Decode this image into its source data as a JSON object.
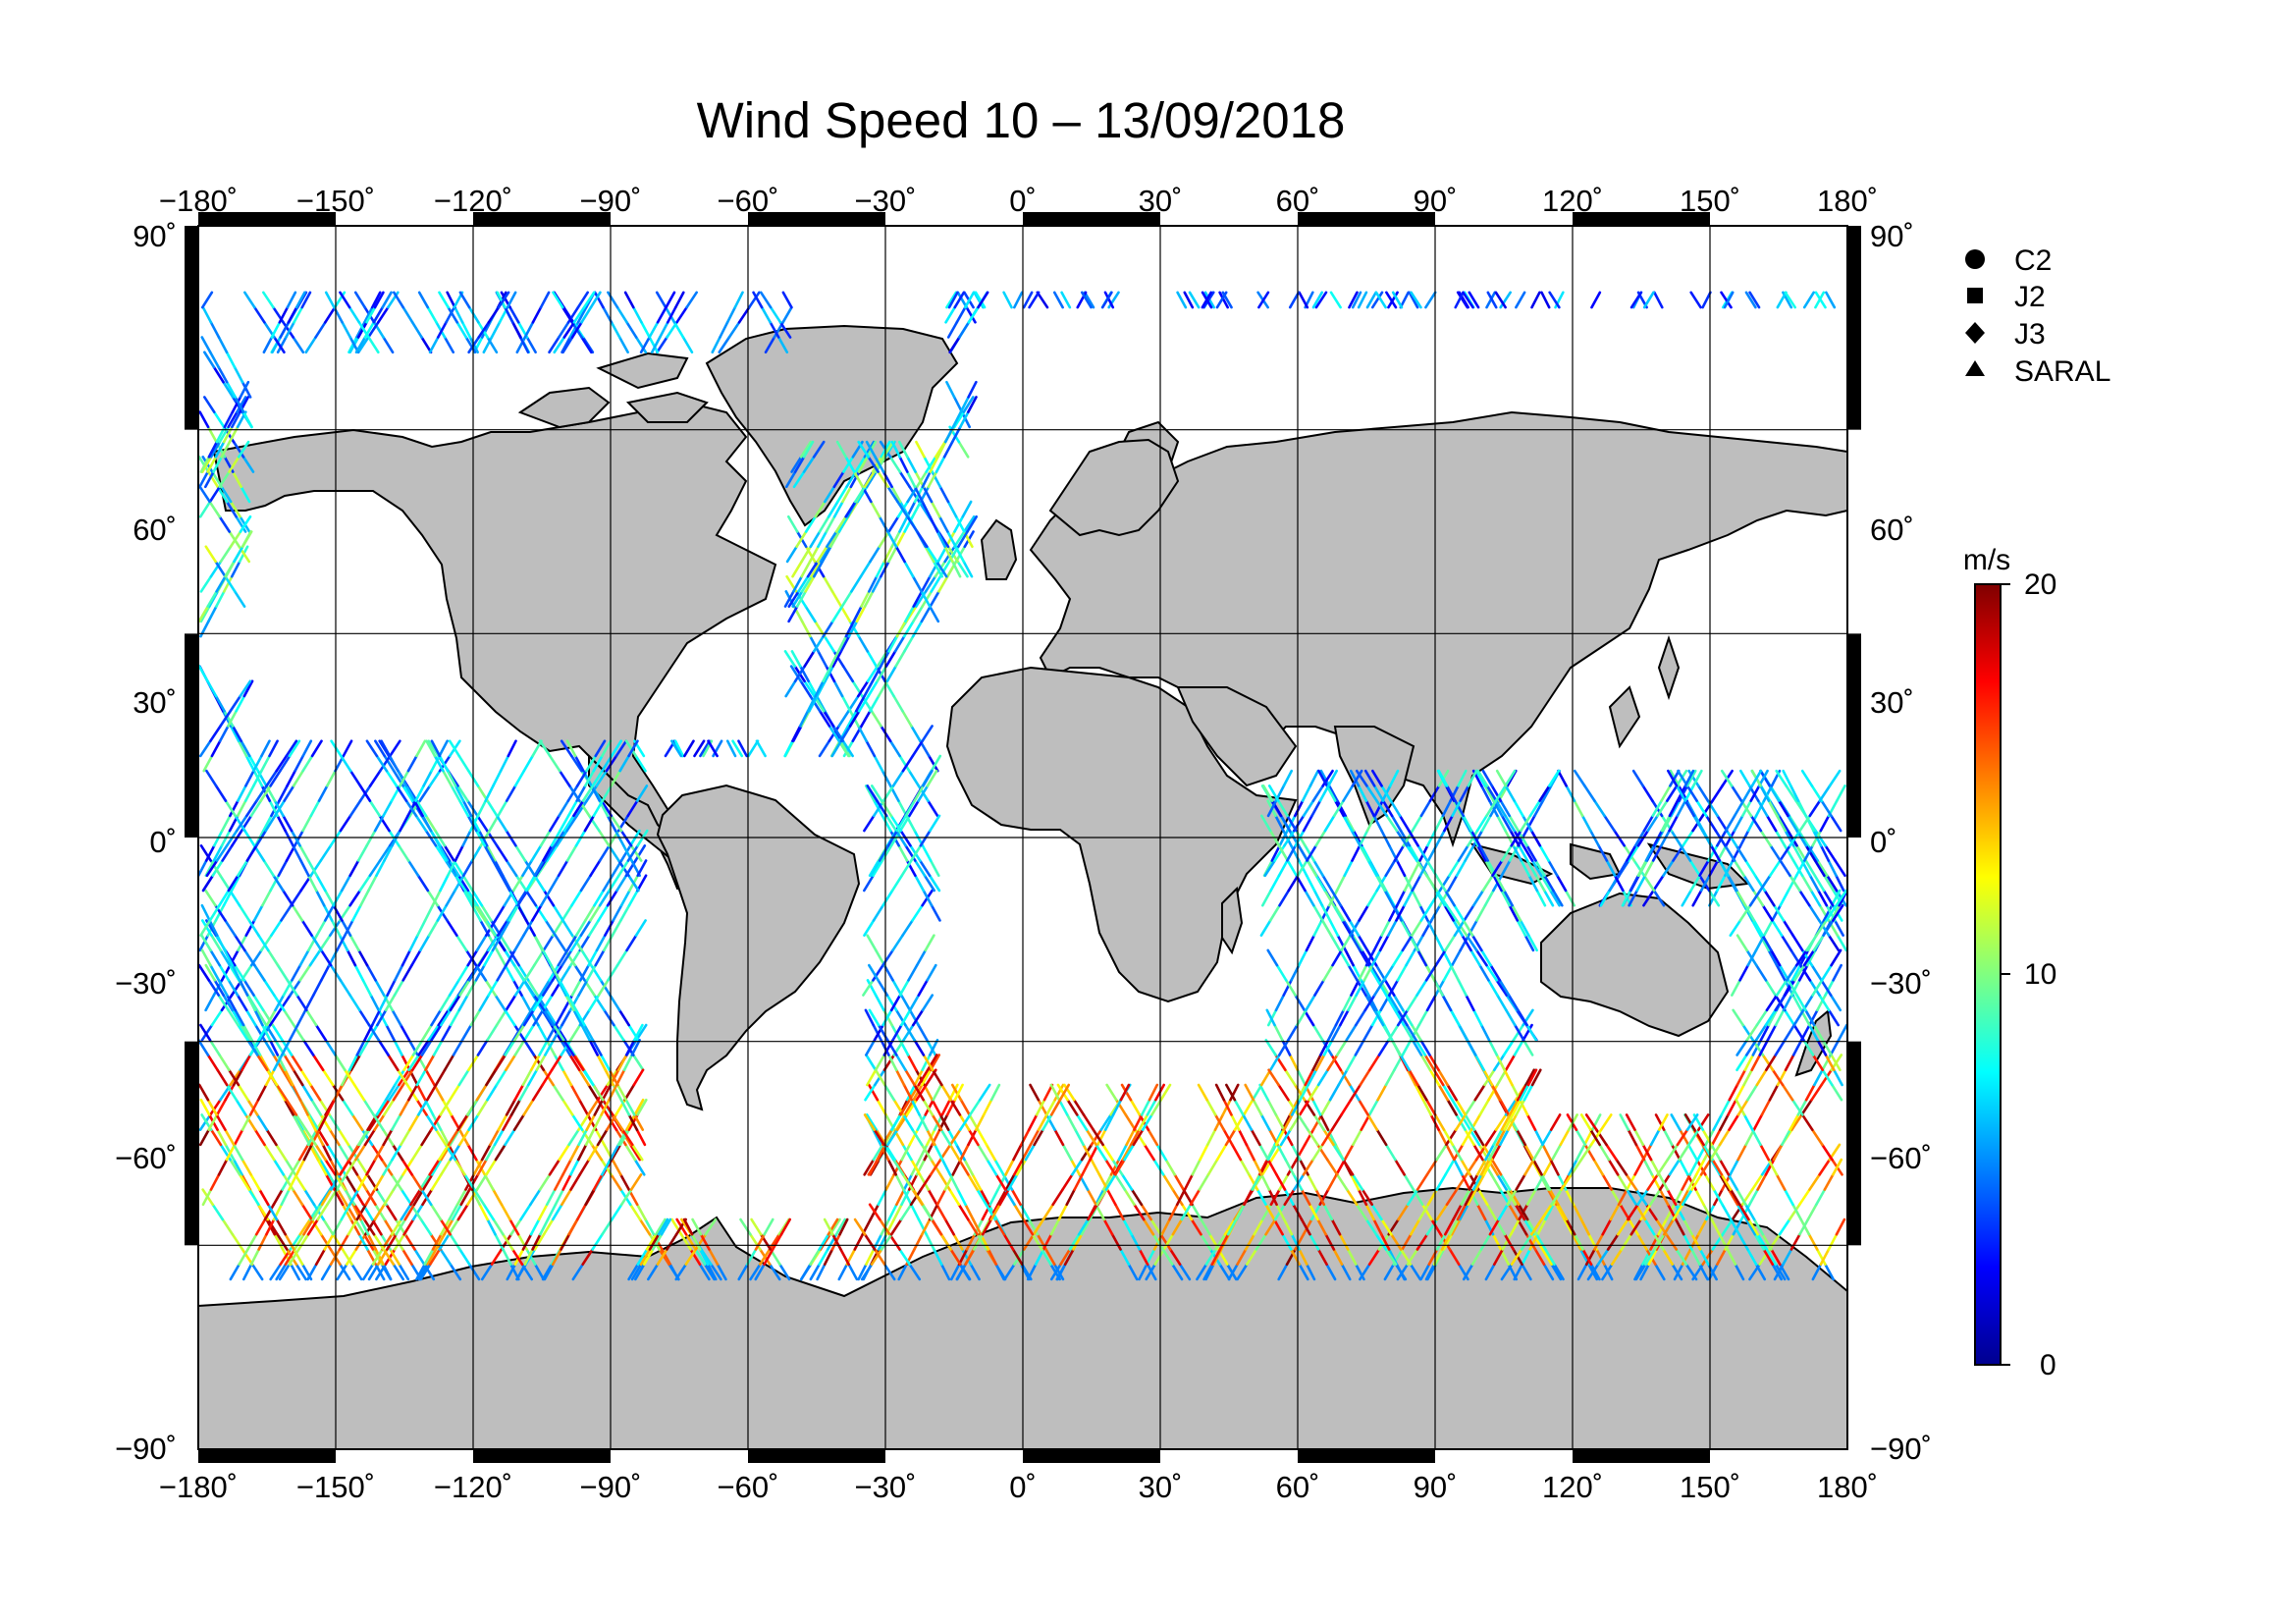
{
  "title": "Wind Speed 10 – 13/09/2018",
  "map": {
    "projection": "equirectangular",
    "lon_range": [
      -180,
      180
    ],
    "lat_range": [
      -90,
      90
    ],
    "grid_interval_deg": 30,
    "land_color": "#bebebe",
    "ocean_color": "#ffffff",
    "lon_ticks": [
      "−180˚",
      "−150˚",
      "−120˚",
      "−90˚",
      "−60˚",
      "−30˚",
      "0˚",
      "30˚",
      "60˚",
      "90˚",
      "120˚",
      "150˚",
      "180˚"
    ],
    "lat_ticks": [
      "90˚",
      "60˚",
      "30˚",
      "0˚",
      "−30˚",
      "−60˚",
      "−90˚"
    ]
  },
  "legend": {
    "satellites": [
      {
        "label": "C2",
        "icon": "circle-marker"
      },
      {
        "label": "J2",
        "icon": "square-marker"
      },
      {
        "label": "J3",
        "icon": "diamond-marker"
      },
      {
        "label": "SARAL",
        "icon": "triangle-marker"
      }
    ]
  },
  "colorbar": {
    "unit": "m/s",
    "min": 0,
    "max": 20,
    "ticks": [
      "20",
      "10",
      "0"
    ],
    "colors": [
      "#00008f",
      "#0000ff",
      "#0080ff",
      "#00ffff",
      "#80ff80",
      "#ffff00",
      "#ff8000",
      "#ff0000",
      "#800000"
    ]
  },
  "tracks": {
    "description": "Altimeter ground tracks colored by 10 m wind speed",
    "zones": [
      {
        "lat_range": [
          -62,
          -30
        ],
        "speed_range": [
          6,
          20
        ]
      },
      {
        "lat_range": [
          -30,
          30
        ],
        "speed_range": [
          2,
          10
        ]
      },
      {
        "lat_range": [
          30,
          62
        ],
        "speed_range": [
          3,
          12
        ]
      },
      {
        "lat_range": [
          62,
          82
        ],
        "speed_range": [
          2,
          8
        ]
      }
    ]
  }
}
